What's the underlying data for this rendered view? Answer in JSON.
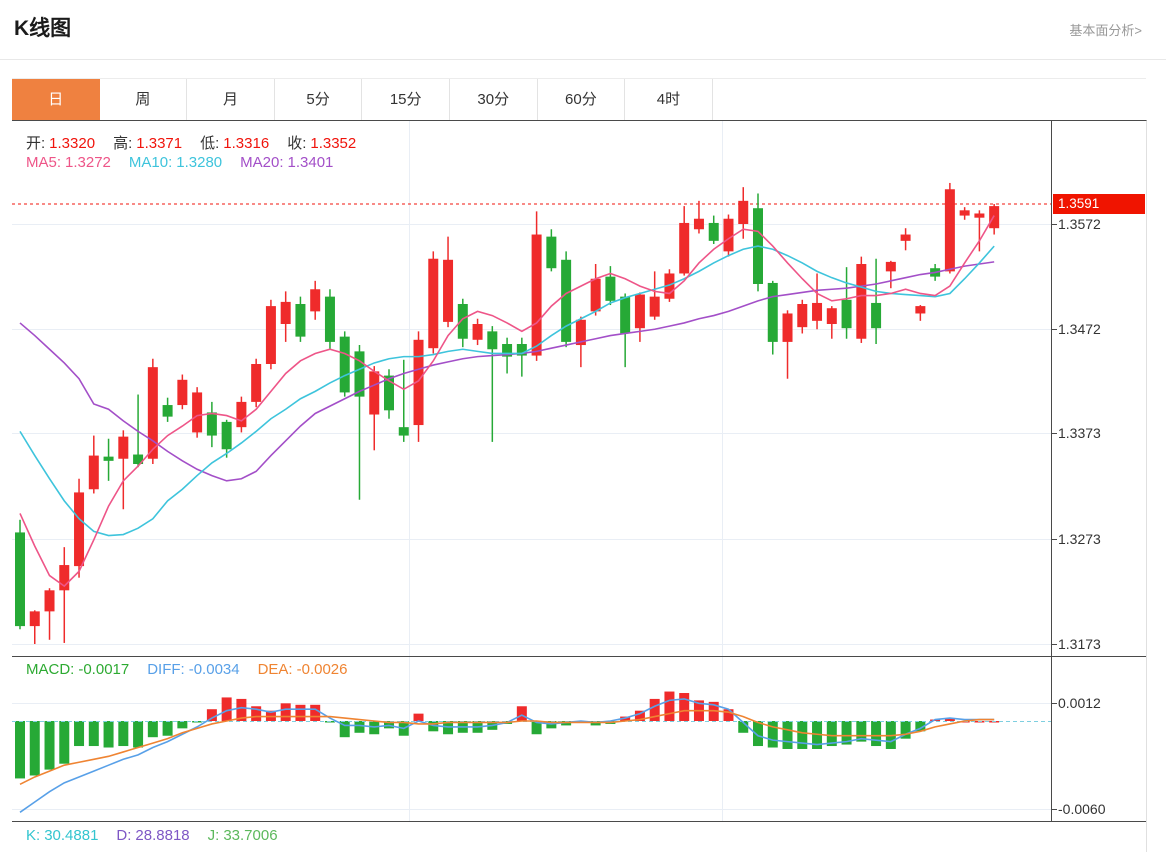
{
  "header": {
    "title": "K线图",
    "link": "基本面分析>"
  },
  "tabs": {
    "items": [
      "日",
      "周",
      "月",
      "5分",
      "15分",
      "30分",
      "60分",
      "4时"
    ],
    "selected_index": 0
  },
  "legends": {
    "ohlc": [
      {
        "label": "开:",
        "value": "1.3320"
      },
      {
        "label": "高:",
        "value": "1.3371"
      },
      {
        "label": "低:",
        "value": "1.3316"
      },
      {
        "label": "收:",
        "value": "1.3352"
      }
    ],
    "ma": [
      {
        "label": "MA5:",
        "value": "1.3272",
        "color": "#ee5588"
      },
      {
        "label": "MA10:",
        "value": "1.3280",
        "color": "#3ec4dc"
      },
      {
        "label": "MA20:",
        "value": "1.3401",
        "color": "#a34fc8"
      }
    ],
    "macd": [
      {
        "label": "MACD:",
        "value": "-0.0017",
        "color": "#2daa32"
      },
      {
        "label": "DIFF:",
        "value": "-0.0034",
        "color": "#58a0e8"
      },
      {
        "label": "DEA:",
        "value": "-0.0026",
        "color": "#ef8432"
      }
    ],
    "kdj": [
      {
        "label": "K:",
        "value": "30.4881",
        "color": "#33c5cf"
      },
      {
        "label": "D:",
        "value": "28.8818",
        "color": "#7e57c5"
      },
      {
        "label": "J:",
        "value": "33.7006",
        "color": "#5cb85c"
      }
    ]
  },
  "colors": {
    "up": "#ef2b2b",
    "down": "#26a936",
    "ma5": "#ee5588",
    "ma10": "#3ec4dc",
    "ma20": "#a34fc8",
    "diff": "#58a0e8",
    "dea": "#ef8432",
    "badge": "#f01400",
    "dotted_price_line": "#f0140c",
    "grid": "#e9eef5",
    "panel_border": "#4a4a4a",
    "tab_selected": "#ef8140",
    "ohlc_value": "#f0140c",
    "zero_line": "#7ecfe0"
  },
  "chart_data": {
    "type": "candlestick",
    "title": "K线图 (日K)",
    "price_axis": {
      "ticks": [
        1.3572,
        1.3472,
        1.3373,
        1.3273,
        1.3173
      ],
      "current_price": 1.3591
    },
    "macd_axis": {
      "ticks": [
        0.0012,
        -0.006
      ]
    },
    "candles_ohlc": [
      [
        1.3279,
        1.3291,
        1.3187,
        1.319
      ],
      [
        1.319,
        1.3205,
        1.3173,
        1.3204
      ],
      [
        1.3204,
        1.3226,
        1.3177,
        1.3224
      ],
      [
        1.3224,
        1.3265,
        1.3174,
        1.3248
      ],
      [
        1.3247,
        1.333,
        1.3236,
        1.3317
      ],
      [
        1.332,
        1.3371,
        1.3316,
        1.3352
      ],
      [
        1.3351,
        1.3368,
        1.3328,
        1.3347
      ],
      [
        1.3349,
        1.3376,
        1.3301,
        1.337
      ],
      [
        1.3353,
        1.341,
        1.3341,
        1.3344
      ],
      [
        1.3349,
        1.3444,
        1.3344,
        1.3436
      ],
      [
        1.34,
        1.3407,
        1.3384,
        1.3389
      ],
      [
        1.34,
        1.3429,
        1.3396,
        1.3424
      ],
      [
        1.3374,
        1.3417,
        1.3369,
        1.3412
      ],
      [
        1.3393,
        1.3403,
        1.336,
        1.3371
      ],
      [
        1.3384,
        1.3386,
        1.335,
        1.3358
      ],
      [
        1.3379,
        1.3408,
        1.3374,
        1.3403
      ],
      [
        1.3403,
        1.3444,
        1.3398,
        1.3439
      ],
      [
        1.3439,
        1.35,
        1.3434,
        1.3494
      ],
      [
        1.3477,
        1.3508,
        1.346,
        1.3498
      ],
      [
        1.3496,
        1.3503,
        1.346,
        1.3465
      ],
      [
        1.3489,
        1.3518,
        1.3481,
        1.351
      ],
      [
        1.3503,
        1.351,
        1.3453,
        1.346
      ],
      [
        1.3465,
        1.347,
        1.3408,
        1.3412
      ],
      [
        1.3451,
        1.3457,
        1.331,
        1.3408
      ],
      [
        1.3391,
        1.3437,
        1.3357,
        1.3432
      ],
      [
        1.3428,
        1.3434,
        1.3387,
        1.3395
      ],
      [
        1.3379,
        1.3443,
        1.3365,
        1.3371
      ],
      [
        1.3381,
        1.347,
        1.3365,
        1.3462
      ],
      [
        1.3454,
        1.3546,
        1.3449,
        1.3539
      ],
      [
        1.3479,
        1.356,
        1.3474,
        1.3538
      ],
      [
        1.3496,
        1.3501,
        1.3455,
        1.3463
      ],
      [
        1.3462,
        1.3482,
        1.3457,
        1.3477
      ],
      [
        1.347,
        1.3475,
        1.3365,
        1.3453
      ],
      [
        1.3458,
        1.3464,
        1.343,
        1.3446
      ],
      [
        1.3458,
        1.3464,
        1.3427,
        1.3447
      ],
      [
        1.3447,
        1.3584,
        1.3442,
        1.3562
      ],
      [
        1.356,
        1.3567,
        1.3527,
        1.353
      ],
      [
        1.3538,
        1.3546,
        1.3455,
        1.346
      ],
      [
        1.3457,
        1.3484,
        1.3436,
        1.3481
      ],
      [
        1.3489,
        1.3534,
        1.3485,
        1.352
      ],
      [
        1.3522,
        1.3532,
        1.3495,
        1.3499
      ],
      [
        1.3503,
        1.3506,
        1.3436,
        1.3468
      ],
      [
        1.3473,
        1.3507,
        1.346,
        1.3505
      ],
      [
        1.3484,
        1.3527,
        1.3481,
        1.3503
      ],
      [
        1.3501,
        1.3529,
        1.3498,
        1.3525
      ],
      [
        1.3525,
        1.3589,
        1.3523,
        1.3573
      ],
      [
        1.3567,
        1.3594,
        1.3563,
        1.3577
      ],
      [
        1.3573,
        1.358,
        1.3553,
        1.3556
      ],
      [
        1.3546,
        1.3581,
        1.3541,
        1.3577
      ],
      [
        1.3572,
        1.3607,
        1.3558,
        1.3594
      ],
      [
        1.3587,
        1.3601,
        1.3508,
        1.3515
      ],
      [
        1.3516,
        1.3518,
        1.3448,
        1.346
      ],
      [
        1.346,
        1.349,
        1.3425,
        1.3487
      ],
      [
        1.3474,
        1.35,
        1.3468,
        1.3496
      ],
      [
        1.348,
        1.3525,
        1.3472,
        1.3497
      ],
      [
        1.3477,
        1.3494,
        1.3463,
        1.3492
      ],
      [
        1.35,
        1.3531,
        1.3463,
        1.3473
      ],
      [
        1.3463,
        1.3541,
        1.3459,
        1.3534
      ],
      [
        1.3497,
        1.3539,
        1.3458,
        1.3473
      ],
      [
        1.3527,
        1.3537,
        1.3511,
        1.3536
      ],
      [
        1.3556,
        1.3568,
        1.3547,
        1.3562
      ],
      [
        1.3487,
        1.3495,
        1.348,
        1.3494
      ],
      [
        1.353,
        1.3534,
        1.3518,
        1.3522
      ],
      [
        1.3527,
        1.3611,
        1.3525,
        1.3605
      ],
      [
        1.358,
        1.3588,
        1.3576,
        1.3585
      ],
      [
        1.3578,
        1.3585,
        1.3546,
        1.3582
      ],
      [
        1.3568,
        1.3591,
        1.3562,
        1.3589
      ]
    ],
    "ma5": [
      1.3297,
      1.3266,
      1.3238,
      1.3228,
      1.3242,
      1.3272,
      1.3304,
      1.3328,
      1.3342,
      1.3358,
      1.3371,
      1.338,
      1.339,
      1.3392,
      1.339,
      1.3385,
      1.3396,
      1.3413,
      1.343,
      1.3442,
      1.3449,
      1.3453,
      1.3449,
      1.3442,
      1.3432,
      1.3423,
      1.3415,
      1.3423,
      1.3442,
      1.3466,
      1.3482,
      1.3489,
      1.3485,
      1.3478,
      1.347,
      1.3478,
      1.3494,
      1.3506,
      1.3513,
      1.352,
      1.3525,
      1.352,
      1.3513,
      1.3508,
      1.3506,
      1.3518,
      1.3535,
      1.3548,
      1.3558,
      1.3567,
      1.3565,
      1.3551,
      1.3535,
      1.352,
      1.3506,
      1.3499,
      1.3501,
      1.3504,
      1.3504,
      1.3506,
      1.351,
      1.3506,
      1.3504,
      1.3513,
      1.3535,
      1.3556,
      1.358
    ],
    "ma10": [
      1.3375,
      1.3352,
      1.333,
      1.3309,
      1.3292,
      1.328,
      1.3276,
      1.3277,
      1.3283,
      1.3292,
      1.3309,
      1.332,
      1.3333,
      1.3345,
      1.3354,
      1.3364,
      1.3375,
      1.3387,
      1.3396,
      1.3406,
      1.3413,
      1.3421,
      1.3428,
      1.3434,
      1.344,
      1.3444,
      1.3446,
      1.3446,
      1.3448,
      1.3451,
      1.3453,
      1.3451,
      1.3449,
      1.3449,
      1.3449,
      1.3456,
      1.3466,
      1.3475,
      1.3482,
      1.3489,
      1.3497,
      1.3502,
      1.3506,
      1.351,
      1.3514,
      1.352,
      1.3527,
      1.3535,
      1.3542,
      1.3548,
      1.3551,
      1.3548,
      1.3542,
      1.3535,
      1.3527,
      1.3521,
      1.3516,
      1.3512,
      1.3508,
      1.3506,
      1.3505,
      1.3504,
      1.3503,
      1.3506,
      1.352,
      1.3535,
      1.3551
    ],
    "ma20": [
      1.3478,
      1.3466,
      1.3453,
      1.344,
      1.3425,
      1.3401,
      1.3396,
      1.3385,
      1.3375,
      1.3366,
      1.3356,
      1.3347,
      1.3339,
      1.3333,
      1.3328,
      1.333,
      1.3337,
      1.3352,
      1.3366,
      1.338,
      1.3392,
      1.3399,
      1.3406,
      1.3413,
      1.3419,
      1.3425,
      1.343,
      1.3434,
      1.3438,
      1.3441,
      1.3444,
      1.3446,
      1.3447,
      1.3448,
      1.3449,
      1.3451,
      1.3454,
      1.3457,
      1.346,
      1.3463,
      1.3466,
      1.3468,
      1.347,
      1.3472,
      1.3475,
      1.3478,
      1.3482,
      1.3485,
      1.3489,
      1.3494,
      1.3499,
      1.3503,
      1.3505,
      1.3507,
      1.3509,
      1.351,
      1.3511,
      1.3513,
      1.3515,
      1.3518,
      1.3521,
      1.3524,
      1.3526,
      1.3529,
      1.3532,
      1.3534,
      1.3536
    ],
    "macd_hist_e4": [
      -39,
      -37,
      -33,
      -29,
      -17,
      -17,
      -18,
      -17,
      -18,
      -11,
      -10,
      -5,
      -1,
      8,
      16,
      15,
      10,
      7,
      12,
      11,
      11,
      -1,
      -11,
      -8,
      -9,
      -5,
      -10,
      5,
      -7,
      -9,
      -8,
      -8,
      -6,
      -2,
      10,
      -9,
      -5,
      -3,
      -1,
      -3,
      -2,
      3,
      7,
      15,
      20,
      19,
      14,
      13,
      8,
      -8,
      -17,
      -18,
      -19,
      -19,
      -19,
      -17,
      -16,
      -14,
      -17,
      -19,
      -12,
      -7,
      1,
      2,
      0,
      0,
      0
    ],
    "diff_e4": [
      -62,
      -55,
      -48,
      -42,
      -38,
      -34,
      -30,
      -26,
      -23,
      -18,
      -14,
      -9,
      -4,
      2,
      7,
      9,
      8,
      6,
      8,
      8,
      8,
      2,
      -3,
      -3,
      -4,
      -3,
      -5,
      0,
      -3,
      -4,
      -4,
      -4,
      -3,
      -1,
      4,
      -1,
      -2,
      -1,
      0,
      -1,
      0,
      2,
      5,
      10,
      14,
      15,
      12,
      11,
      8,
      -1,
      -10,
      -13,
      -14,
      -15,
      -16,
      -15,
      -14,
      -12,
      -13,
      -14,
      -9,
      -5,
      1,
      2,
      1,
      1,
      1
    ],
    "dea_e4": [
      -43,
      -38,
      -34,
      -30,
      -28,
      -26,
      -24,
      -21,
      -18,
      -15,
      -12,
      -8,
      -5,
      -2,
      0,
      2,
      3,
      3,
      3,
      3,
      3,
      3,
      2,
      1,
      0,
      -1,
      -1,
      -2,
      -2,
      -1,
      -1,
      -1,
      -1,
      -1,
      0,
      0,
      -1,
      -1,
      -1,
      -1,
      -1,
      0,
      1,
      3,
      5,
      7,
      7,
      7,
      6,
      3,
      -1,
      -4,
      -6,
      -8,
      -9,
      -10,
      -10,
      -10,
      -10,
      -10,
      -9,
      -7,
      -4,
      -2,
      0,
      1,
      1
    ],
    "legend_note": "red = up candle, green = down candle (CN convention)"
  }
}
